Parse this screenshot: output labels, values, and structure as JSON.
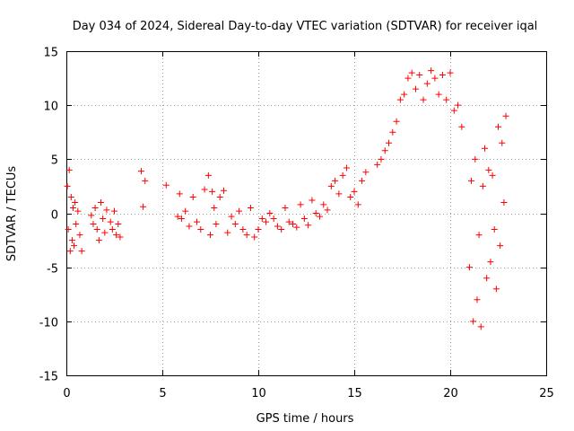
{
  "chart_data": {
    "type": "scatter",
    "title": "Day 034 of 2024, Sidereal Day-to-day VTEC variation (SDTVAR) for receiver iqal",
    "xlabel": "GPS time / hours",
    "ylabel": "SDTVAR / TECUs",
    "xlim": [
      0,
      25
    ],
    "ylim": [
      -15,
      15
    ],
    "xticks": [
      0,
      5,
      10,
      15,
      20,
      25
    ],
    "yticks": [
      -15,
      -10,
      -5,
      0,
      5,
      10,
      15
    ],
    "xtick_labels": [
      "0",
      "5",
      "10",
      "15",
      "20",
      "25"
    ],
    "ytick_labels": [
      "-15",
      "-10",
      "-5",
      "0",
      "5",
      "10",
      "15"
    ],
    "grid": true,
    "marker": "+",
    "color": "#ff0000",
    "series": [
      {
        "name": "SDTVAR",
        "x": [
          0.05,
          0.1,
          0.15,
          0.2,
          0.25,
          0.3,
          0.35,
          0.4,
          0.45,
          0.5,
          0.6,
          0.7,
          0.8,
          1.3,
          1.4,
          1.5,
          1.6,
          1.7,
          1.8,
          1.9,
          2.0,
          2.1,
          2.3,
          2.4,
          2.5,
          2.6,
          2.7,
          2.8,
          3.9,
          4.0,
          4.1,
          5.2,
          5.8,
          5.9,
          6.0,
          6.2,
          6.4,
          6.6,
          6.8,
          7.0,
          7.2,
          7.4,
          7.5,
          7.6,
          7.7,
          7.8,
          8.0,
          8.2,
          8.4,
          8.6,
          8.8,
          9.0,
          9.2,
          9.4,
          9.6,
          9.8,
          10.0,
          10.2,
          10.4,
          10.6,
          10.8,
          11.0,
          11.2,
          11.4,
          11.6,
          11.8,
          12.0,
          12.2,
          12.4,
          12.6,
          12.8,
          13.0,
          13.2,
          13.4,
          13.6,
          13.8,
          14.0,
          14.2,
          14.4,
          14.6,
          14.8,
          15.0,
          15.2,
          15.4,
          15.6,
          16.2,
          16.4,
          16.6,
          16.8,
          17.0,
          17.2,
          17.4,
          17.6,
          17.8,
          18.0,
          18.2,
          18.4,
          18.6,
          18.8,
          19.0,
          19.2,
          19.4,
          19.6,
          19.8,
          20.0,
          20.2,
          20.4,
          20.6,
          21.0,
          21.1,
          21.2,
          21.3,
          21.4,
          21.5,
          21.6,
          21.7,
          21.8,
          21.9,
          22.0,
          22.1,
          22.2,
          22.3,
          22.4,
          22.5,
          22.6,
          22.7,
          22.8,
          22.9
        ],
        "y": [
          2.5,
          -1.5,
          4.0,
          -3.5,
          1.5,
          -2.5,
          0.5,
          -3.0,
          1.0,
          -1.0,
          0.2,
          -2.0,
          -3.5,
          -0.2,
          -1.0,
          0.5,
          -1.5,
          -2.5,
          1.0,
          -0.5,
          -1.8,
          0.3,
          -0.8,
          -1.5,
          0.2,
          -2.0,
          -1.0,
          -2.2,
          3.9,
          0.6,
          3.0,
          2.6,
          -0.3,
          1.8,
          -0.5,
          0.2,
          -1.2,
          1.5,
          -0.8,
          -1.5,
          2.2,
          3.5,
          -2.0,
          2.0,
          0.5,
          -1.0,
          1.5,
          2.1,
          -1.8,
          -0.3,
          -1.0,
          0.2,
          -1.5,
          -2.0,
          0.5,
          -2.2,
          -1.5,
          -0.5,
          -0.8,
          0.0,
          -0.5,
          -1.2,
          -1.5,
          0.5,
          -0.8,
          -1.0,
          -1.3,
          0.8,
          -0.5,
          -1.1,
          1.2,
          0.0,
          -0.3,
          0.8,
          0.3,
          2.5,
          3.0,
          1.8,
          3.5,
          4.2,
          1.5,
          2.0,
          0.8,
          3.0,
          3.8,
          4.5,
          5.0,
          5.8,
          6.5,
          7.5,
          8.5,
          10.5,
          11.0,
          12.5,
          13.0,
          11.5,
          12.8,
          10.5,
          12.0,
          13.2,
          12.5,
          11.0,
          12.8,
          10.5,
          13.0,
          9.5,
          10.0,
          8.0,
          -5.0,
          3.0,
          -10.0,
          5.0,
          -8.0,
          -2.0,
          -10.5,
          2.5,
          6.0,
          -6.0,
          4.0,
          -4.5,
          3.5,
          -1.5,
          -7.0,
          8.0,
          -3.0,
          6.5,
          1.0,
          9.0
        ]
      }
    ]
  }
}
